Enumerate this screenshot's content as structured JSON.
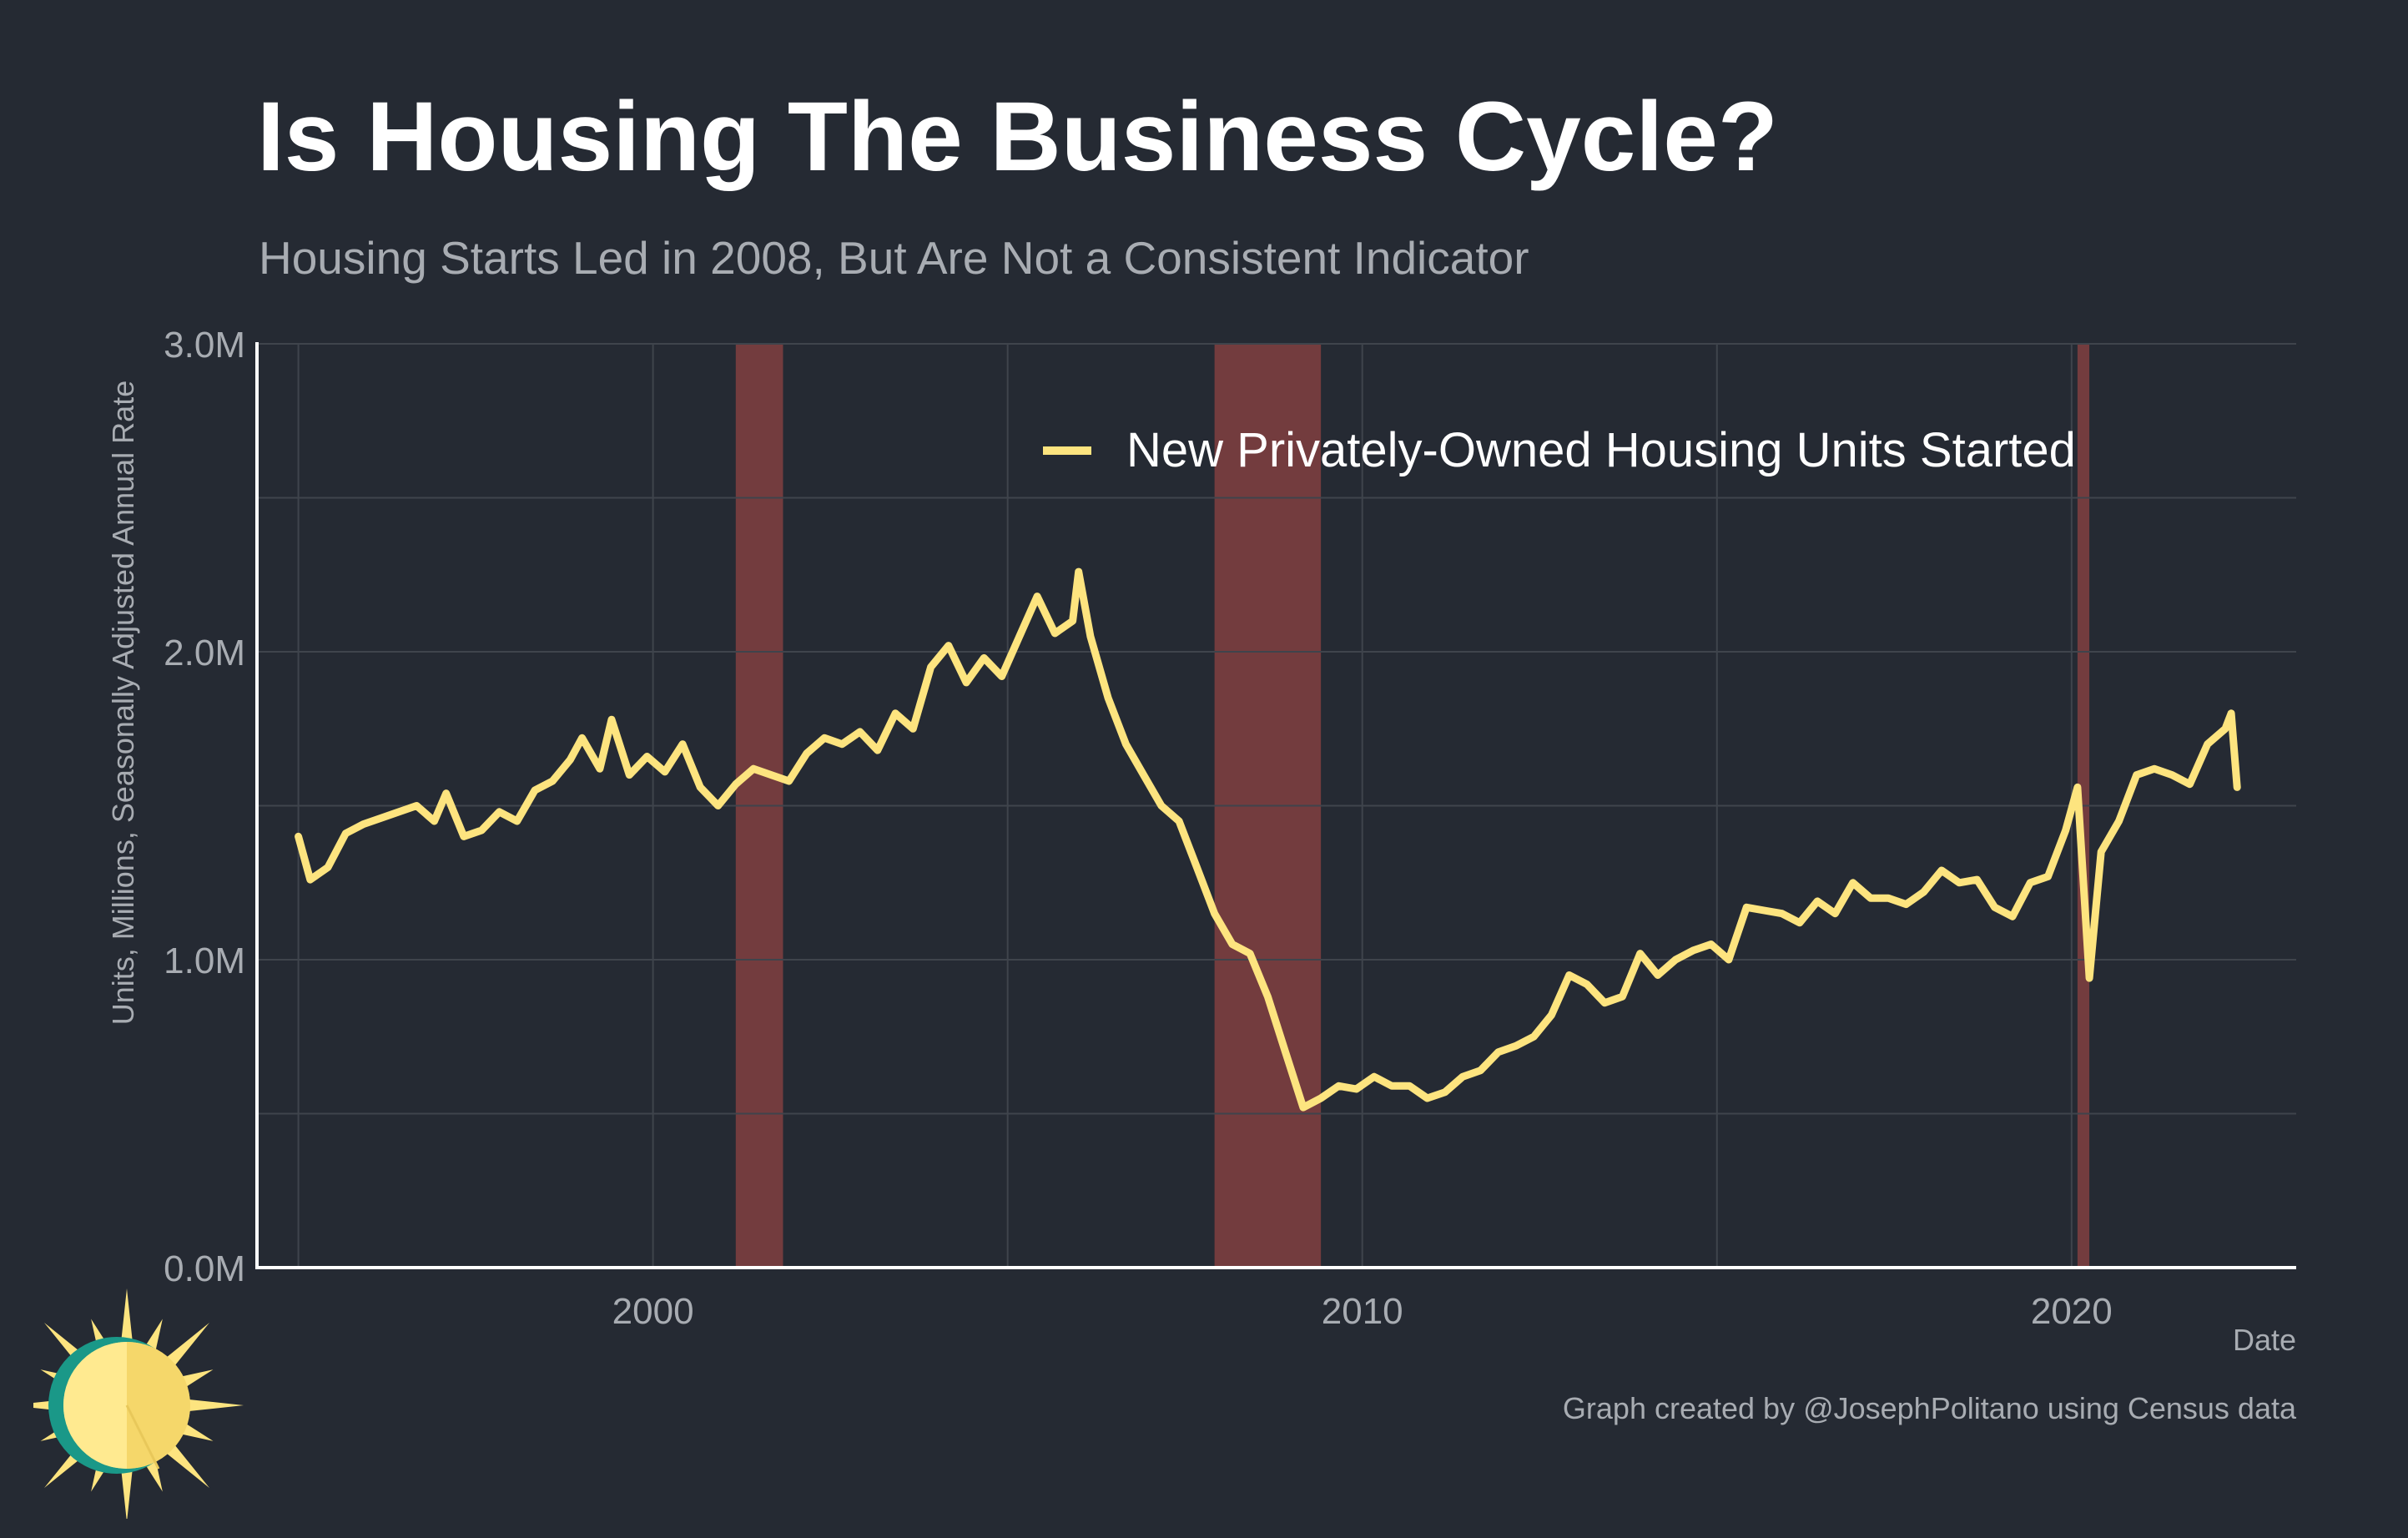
{
  "chart_data": {
    "type": "line",
    "title": "Is Housing The Business Cycle?",
    "subtitle": "Housing Starts Led in 2008, But Are Not a Consistent Indicator",
    "ylabel": "Units, Millions, Seasonally Adjusted Annual Rate",
    "xlabel": "Date",
    "xlim": [
      "1994-06",
      "2023-03"
    ],
    "ylim": [
      0,
      3.0
    ],
    "x_ticks": [
      "2000",
      "2010",
      "2020"
    ],
    "y_ticks": [
      "0.0M",
      "1.0M",
      "2.0M",
      "3.0M"
    ],
    "grid": true,
    "legend_position": "top-right",
    "recessions": [
      {
        "start": "2001-03",
        "end": "2001-11"
      },
      {
        "start": "2007-12",
        "end": "2009-06"
      },
      {
        "start": "2020-02",
        "end": "2020-04"
      }
    ],
    "series": [
      {
        "name": "New Privately-Owned Housing Units Started",
        "color": "#fde47f",
        "points": [
          [
            "1995-01",
            1.4
          ],
          [
            "1995-03",
            1.26
          ],
          [
            "1995-06",
            1.3
          ],
          [
            "1995-09",
            1.41
          ],
          [
            "1995-12",
            1.44
          ],
          [
            "1996-03",
            1.46
          ],
          [
            "1996-06",
            1.48
          ],
          [
            "1996-09",
            1.5
          ],
          [
            "1996-12",
            1.45
          ],
          [
            "1997-02",
            1.54
          ],
          [
            "1997-05",
            1.4
          ],
          [
            "1997-08",
            1.42
          ],
          [
            "1997-11",
            1.48
          ],
          [
            "1998-02",
            1.45
          ],
          [
            "1998-05",
            1.55
          ],
          [
            "1998-08",
            1.58
          ],
          [
            "1998-11",
            1.65
          ],
          [
            "1999-01",
            1.72
          ],
          [
            "1999-04",
            1.62
          ],
          [
            "1999-06",
            1.78
          ],
          [
            "1999-09",
            1.6
          ],
          [
            "1999-12",
            1.66
          ],
          [
            "2000-03",
            1.61
          ],
          [
            "2000-06",
            1.7
          ],
          [
            "2000-09",
            1.56
          ],
          [
            "2000-12",
            1.5
          ],
          [
            "2001-03",
            1.57
          ],
          [
            "2001-06",
            1.62
          ],
          [
            "2001-09",
            1.6
          ],
          [
            "2001-12",
            1.58
          ],
          [
            "2002-03",
            1.67
          ],
          [
            "2002-06",
            1.72
          ],
          [
            "2002-09",
            1.7
          ],
          [
            "2002-12",
            1.74
          ],
          [
            "2003-03",
            1.68
          ],
          [
            "2003-06",
            1.8
          ],
          [
            "2003-09",
            1.75
          ],
          [
            "2003-12",
            1.95
          ],
          [
            "2004-03",
            2.02
          ],
          [
            "2004-06",
            1.9
          ],
          [
            "2004-09",
            1.98
          ],
          [
            "2004-12",
            1.92
          ],
          [
            "2005-03",
            2.05
          ],
          [
            "2005-06",
            2.18
          ],
          [
            "2005-09",
            2.06
          ],
          [
            "2005-12",
            2.1
          ],
          [
            "2006-01",
            2.26
          ],
          [
            "2006-03",
            2.05
          ],
          [
            "2006-06",
            1.85
          ],
          [
            "2006-09",
            1.7
          ],
          [
            "2006-12",
            1.6
          ],
          [
            "2007-03",
            1.5
          ],
          [
            "2007-06",
            1.45
          ],
          [
            "2007-09",
            1.3
          ],
          [
            "2007-12",
            1.15
          ],
          [
            "2008-03",
            1.05
          ],
          [
            "2008-06",
            1.02
          ],
          [
            "2008-09",
            0.88
          ],
          [
            "2008-12",
            0.7
          ],
          [
            "2009-03",
            0.52
          ],
          [
            "2009-06",
            0.55
          ],
          [
            "2009-09",
            0.59
          ],
          [
            "2009-12",
            0.58
          ],
          [
            "2010-03",
            0.62
          ],
          [
            "2010-06",
            0.59
          ],
          [
            "2010-09",
            0.59
          ],
          [
            "2010-12",
            0.55
          ],
          [
            "2011-03",
            0.57
          ],
          [
            "2011-06",
            0.62
          ],
          [
            "2011-09",
            0.64
          ],
          [
            "2011-12",
            0.7
          ],
          [
            "2012-03",
            0.72
          ],
          [
            "2012-06",
            0.75
          ],
          [
            "2012-09",
            0.82
          ],
          [
            "2012-12",
            0.95
          ],
          [
            "2013-03",
            0.92
          ],
          [
            "2013-06",
            0.86
          ],
          [
            "2013-09",
            0.88
          ],
          [
            "2013-12",
            1.02
          ],
          [
            "2014-03",
            0.95
          ],
          [
            "2014-06",
            1.0
          ],
          [
            "2014-09",
            1.03
          ],
          [
            "2014-12",
            1.05
          ],
          [
            "2015-03",
            1.0
          ],
          [
            "2015-06",
            1.17
          ],
          [
            "2015-09",
            1.16
          ],
          [
            "2015-12",
            1.15
          ],
          [
            "2016-03",
            1.12
          ],
          [
            "2016-06",
            1.19
          ],
          [
            "2016-09",
            1.15
          ],
          [
            "2016-12",
            1.25
          ],
          [
            "2017-03",
            1.2
          ],
          [
            "2017-06",
            1.2
          ],
          [
            "2017-09",
            1.18
          ],
          [
            "2017-12",
            1.22
          ],
          [
            "2018-03",
            1.29
          ],
          [
            "2018-06",
            1.25
          ],
          [
            "2018-09",
            1.26
          ],
          [
            "2018-12",
            1.17
          ],
          [
            "2019-03",
            1.14
          ],
          [
            "2019-06",
            1.25
          ],
          [
            "2019-09",
            1.27
          ],
          [
            "2019-12",
            1.42
          ],
          [
            "2020-02",
            1.56
          ],
          [
            "2020-04",
            0.94
          ],
          [
            "2020-06",
            1.35
          ],
          [
            "2020-09",
            1.45
          ],
          [
            "2020-12",
            1.6
          ],
          [
            "2021-03",
            1.62
          ],
          [
            "2021-06",
            1.6
          ],
          [
            "2021-09",
            1.57
          ],
          [
            "2021-12",
            1.7
          ],
          [
            "2022-03",
            1.75
          ],
          [
            "2022-04",
            1.8
          ],
          [
            "2022-05",
            1.56
          ]
        ]
      }
    ]
  },
  "footer": {
    "credit": "Graph created by @JosephPolitano using Census data"
  }
}
